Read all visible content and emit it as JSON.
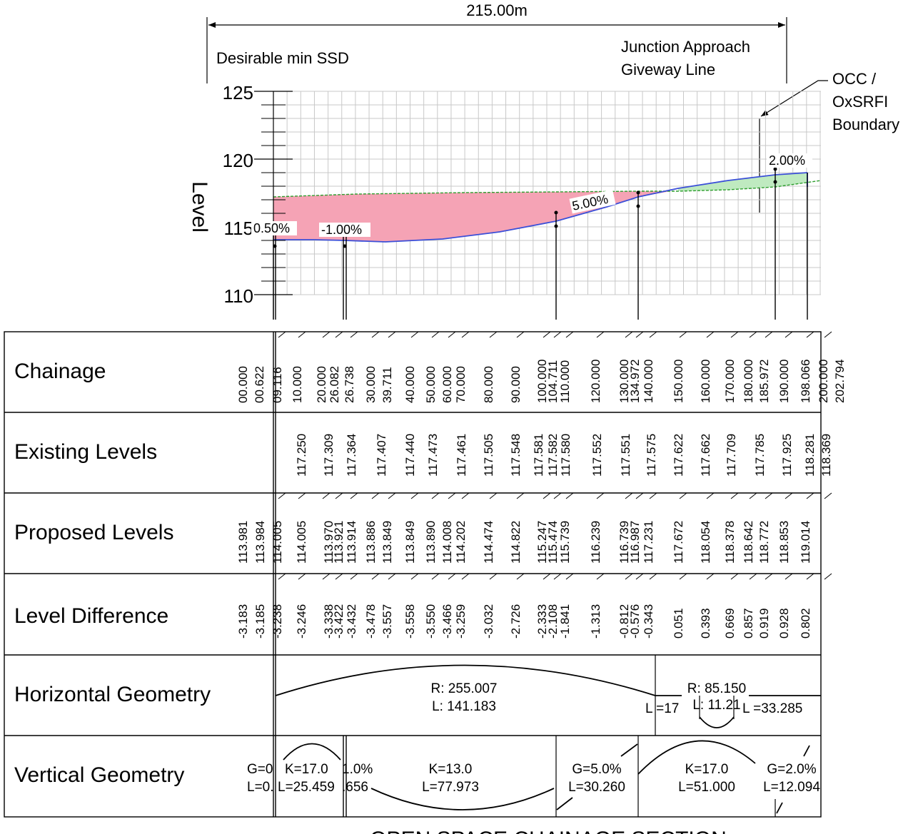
{
  "dimension": {
    "label": "215.00m"
  },
  "annotations": {
    "ssd": "Desirable min SSD",
    "junction": [
      "Junction Approach",
      "Giveway Line"
    ],
    "boundary": [
      "OCC /",
      "OxSRFI",
      "Boundary"
    ]
  },
  "axis": {
    "label": "Level",
    "ticks": [
      "125",
      "120",
      "115",
      "110"
    ]
  },
  "grade_labels": [
    "0.50%",
    "-1.00%",
    "5.00%",
    "2.00%"
  ],
  "colors": {
    "existing": "#2e9e2e",
    "proposed": "#3b4fd8",
    "cut": "#f5a3b5",
    "fill": "#bfeac0",
    "grid": "#c8c8c8"
  },
  "rows": {
    "chainage": "Chainage",
    "existing": "Existing Levels",
    "proposed": "Proposed Levels",
    "difference": "Level Difference",
    "horizontal": "Horizontal Geometry",
    "vertical": "Vertical Geometry"
  },
  "chainage_values": [
    "00.000",
    "00.622",
    "09.116",
    "10.000",
    "20.000",
    "26.082",
    "26.738",
    "30.000",
    "39.711",
    "40.000",
    "50.000",
    "60.000",
    "70.000",
    "80.000",
    "90.000",
    "100.000",
    "104.711",
    "110.000",
    "120.000",
    "130.000",
    "134.972",
    "140.000",
    "150.000",
    "160.000",
    "170.000",
    "180.000",
    "185.972",
    "190.000",
    "198.066",
    "200.000",
    "202.794"
  ],
  "existing_values": [
    "",
    "",
    "",
    "117.250",
    "117.309",
    "117.364",
    "",
    "117.407",
    "117.440",
    "117.473",
    "117.461",
    "117.505",
    "117.548",
    "117.581",
    "117.582",
    "117.580",
    "117.552",
    "117.551",
    "117.575",
    "117.622",
    "117.662",
    "117.709",
    "117.785",
    "117.925",
    "118.281",
    "118.369"
  ],
  "proposed_values": [
    "113.981",
    "113.984",
    "114.005",
    "114.005",
    "113.970",
    "113.921",
    "113.914",
    "113.886",
    "113.849",
    "113.849",
    "113.890",
    "114.008",
    "114.202",
    "114.474",
    "114.822",
    "115.247",
    "115.474",
    "115.739",
    "116.239",
    "116.739",
    "116.987",
    "117.231",
    "117.672",
    "118.054",
    "118.378",
    "118.642",
    "118.772",
    "118.853",
    "119.014"
  ],
  "difference_values": [
    "-3.183",
    "-3.185",
    "-3.238",
    "-3.246",
    "-3.338",
    "-3.422",
    "-3.432",
    "-3.478",
    "-3.557",
    "-3.558",
    "-3.550",
    "-3.466",
    "-3.259",
    "-3.032",
    "-2.726",
    "-2.333",
    "-2.108",
    "-1.841",
    "-1.313",
    "-0.812",
    "-0.576",
    "-0.343",
    "0.051",
    "0.393",
    "0.669",
    "0.857",
    "0.919",
    "0.928",
    "0.802"
  ],
  "horizontal": {
    "r1": "R: 255.007",
    "l1": "L: 141.183",
    "r2": "R: 85.150",
    "l2": "L: 11.21",
    "l_left": "L =17",
    "l_right": "L =33.285"
  },
  "vertical": {
    "g0": "G=0",
    "l0": "L=0.",
    "k1": "K=17.0",
    "l1": "L=25.459",
    "g1": "1.0%",
    "l1b": ".656",
    "k2": "K=13.0",
    "l2": "L=77.973",
    "g2": "G=5.0%",
    "l2b": "L=30.260",
    "k3": "K=17.0",
    "l3": "L=51.000",
    "g3": "G=2.0%",
    "l3b": "L=12.094"
  },
  "footer": "OPEN SPACE CHAINAGE SECTION"
}
